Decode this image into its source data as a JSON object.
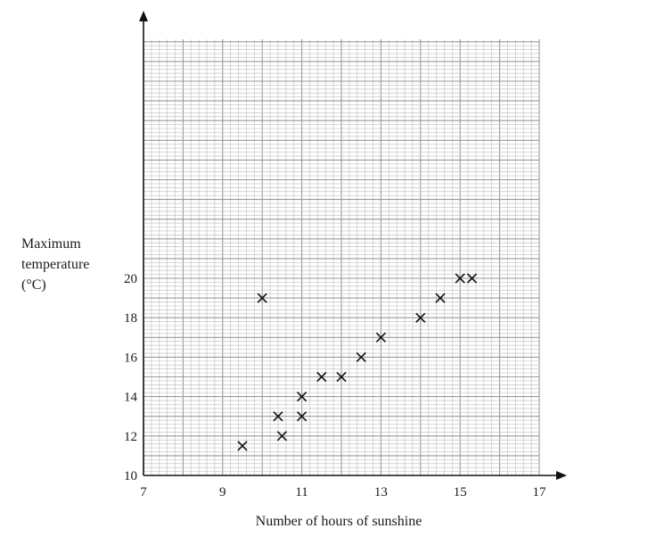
{
  "chart_data": {
    "type": "scatter",
    "title": "",
    "xlabel": "Number of hours of sunshine",
    "ylabel_lines": [
      "Maximum",
      "temperature",
      "(°C)"
    ],
    "xlim": [
      7,
      17
    ],
    "ylim": [
      10,
      21
    ],
    "xticks": [
      "7",
      "9",
      "11",
      "13",
      "15",
      "17"
    ],
    "yticks": [
      "10",
      "12",
      "14",
      "16",
      "18",
      "20"
    ],
    "grid": true,
    "marker": "x",
    "series": [
      {
        "name": "observations",
        "points": [
          {
            "x": 9.5,
            "y": 11.5
          },
          {
            "x": 10.0,
            "y": 19.0
          },
          {
            "x": 10.4,
            "y": 13.0
          },
          {
            "x": 10.5,
            "y": 12.0
          },
          {
            "x": 11.0,
            "y": 14.0
          },
          {
            "x": 11.0,
            "y": 13.0
          },
          {
            "x": 11.5,
            "y": 15.0
          },
          {
            "x": 12.0,
            "y": 15.0
          },
          {
            "x": 12.5,
            "y": 16.0
          },
          {
            "x": 13.0,
            "y": 17.0
          },
          {
            "x": 14.0,
            "y": 18.0
          },
          {
            "x": 14.5,
            "y": 19.0
          },
          {
            "x": 15.0,
            "y": 20.0
          },
          {
            "x": 15.3,
            "y": 20.0
          }
        ]
      }
    ]
  }
}
